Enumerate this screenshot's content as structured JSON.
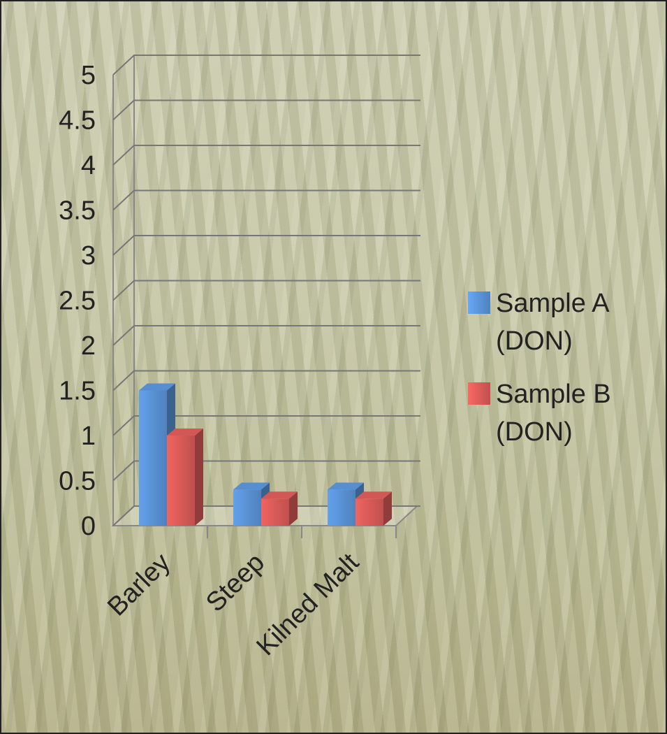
{
  "chart_data": {
    "type": "bar",
    "categories": [
      "Barley",
      "Steep",
      "Kilned Malt"
    ],
    "series": [
      {
        "name": "Sample A (DON)",
        "color": "#4f81bd",
        "values": [
          1.5,
          0.4,
          0.4
        ]
      },
      {
        "name": "Sample B (DON)",
        "color": "#c0504d",
        "values": [
          1.0,
          0.3,
          0.3
        ]
      }
    ],
    "ylim": [
      0,
      5
    ],
    "yticks": [
      0,
      0.5,
      1,
      1.5,
      2,
      2.5,
      3,
      3.5,
      4,
      4.5,
      5
    ],
    "grid": true,
    "legend": "right"
  }
}
